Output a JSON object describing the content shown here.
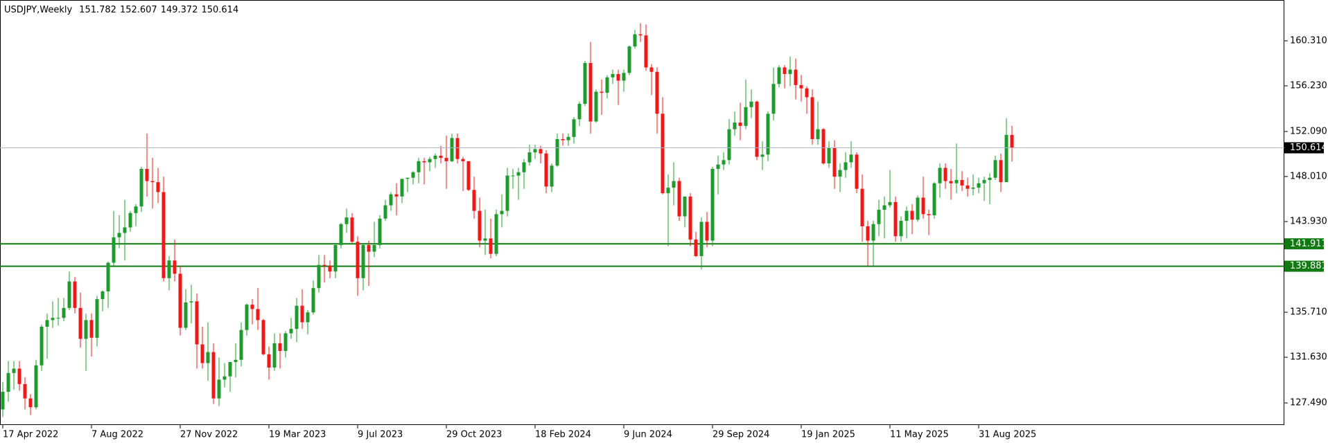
{
  "chart_data": {
    "type": "candlestick",
    "title": "USDJPY,Weekly",
    "categories": [
      "17 Apr 2022",
      null,
      null,
      null,
      null,
      null,
      null,
      null,
      null,
      null,
      null,
      null,
      null,
      null,
      null,
      null,
      "7 Aug 2022",
      null,
      null,
      null,
      null,
      null,
      null,
      null,
      null,
      null,
      null,
      null,
      null,
      null,
      null,
      null,
      "27 Nov 2022",
      null,
      null,
      null,
      null,
      null,
      null,
      null,
      null,
      null,
      null,
      null,
      null,
      null,
      null,
      null,
      "19 Mar 2023",
      null,
      null,
      null,
      null,
      null,
      null,
      null,
      null,
      null,
      null,
      null,
      null,
      null,
      null,
      null,
      "9 Jul 2023",
      null,
      null,
      null,
      null,
      null,
      null,
      null,
      null,
      null,
      null,
      null,
      null,
      null,
      null,
      null,
      "29 Oct 2023",
      null,
      null,
      null,
      null,
      null,
      null,
      null,
      null,
      null,
      null,
      null,
      null,
      null,
      null,
      null,
      "18 Feb 2024",
      null,
      null,
      null,
      null,
      null,
      null,
      null,
      null,
      null,
      null,
      null,
      null,
      null,
      null,
      null,
      "9 Jun 2024",
      null,
      null,
      null,
      null,
      null,
      null,
      null,
      null,
      null,
      null,
      null,
      null,
      null,
      null,
      null,
      "29 Sep 2024",
      null,
      null,
      null,
      null,
      null,
      null,
      null,
      null,
      null,
      null,
      null,
      null,
      null,
      null,
      null,
      "19 Jan 2025",
      null,
      null,
      null,
      null,
      null,
      null,
      null,
      null,
      null,
      null,
      null,
      null,
      null,
      null,
      null,
      "11 May 2025",
      null,
      null,
      null,
      null,
      null,
      null,
      null,
      null,
      null,
      null,
      null,
      null,
      null,
      null,
      null,
      "31 Aug 2025",
      null,
      null,
      null,
      null,
      null,
      null
    ],
    "opens": [
      126.9,
      128.5,
      130.2,
      130.6,
      129.2,
      127.9,
      127.1,
      130.9,
      134.4,
      135.0,
      135.2,
      135.2,
      136.1,
      138.5,
      136.1,
      133.3,
      135.0,
      133.4,
      136.9,
      137.6,
      140.2,
      142.5,
      142.9,
      143.4,
      144.7,
      145.3,
      148.7,
      147.6,
      147.5,
      146.6,
      138.8,
      140.4,
      139.2,
      134.3,
      136.6,
      136.7,
      132.8,
      131.1,
      132.1,
      127.9,
      129.6,
      129.9,
      131.2,
      131.4,
      134.1,
      136.4,
      136.0,
      135.0,
      131.9,
      130.7,
      132.9,
      132.2,
      133.8,
      134.2,
      136.3,
      134.8,
      135.7,
      137.9,
      140.0,
      139.9,
      139.4,
      141.8,
      143.7,
      144.3,
      142.1,
      138.8,
      141.8,
      141.2,
      141.8,
      144.2,
      145.4,
      146.4,
      146.2,
      147.8,
      147.9,
      148.4,
      149.4,
      149.3,
      149.6,
      149.9,
      149.7,
      149.4,
      151.5,
      149.6,
      149.4,
      146.8,
      144.9,
      142.2,
      142.4,
      141.0,
      144.6,
      144.9,
      148.1,
      148.1,
      148.4,
      149.3,
      150.2,
      150.5,
      150.1,
      147.1,
      149.0,
      151.4,
      151.3,
      151.6,
      153.2,
      154.6,
      158.3,
      153.0,
      155.7,
      155.6,
      157.0,
      157.3,
      156.7,
      157.4,
      159.8,
      160.9,
      160.8,
      157.9,
      157.5,
      153.7,
      146.5,
      147.0,
      147.6,
      144.4,
      146.2,
      142.3,
      140.8,
      143.9,
      142.2,
      148.7,
      149.1,
      149.5,
      152.3,
      152.9,
      152.6,
      154.3,
      154.8,
      149.8,
      150.0,
      153.7,
      156.4,
      157.9,
      157.3,
      157.7,
      156.3,
      156.0,
      155.2,
      151.4,
      152.3,
      149.2,
      150.6,
      148.0,
      148.6,
      149.3,
      150.0,
      146.9,
      143.5,
      142.2,
      143.7,
      145.0,
      145.4,
      145.7,
      142.6,
      144.0,
      144.9,
      144.1,
      146.1,
      144.6,
      144.5,
      147.4,
      148.8,
      147.6,
      147.4,
      147.7,
      147.2,
      146.9,
      147.0,
      147.4,
      147.7,
      147.9,
      149.5,
      147.5,
      151.782
    ],
    "highs": [
      129.4,
      131.3,
      131.3,
      131.3,
      129.8,
      128.3,
      131.4,
      134.6,
      135.6,
      136.7,
      137.0,
      137.0,
      139.4,
      138.9,
      137.5,
      135.6,
      135.6,
      137.2,
      137.7,
      140.3,
      144.9,
      144.5,
      145.9,
      144.9,
      145.5,
      148.9,
      151.9,
      149.7,
      148.8,
      148.0,
      140.8,
      142.3,
      139.9,
      137.8,
      138.2,
      137.4,
      134.4,
      134.8,
      132.9,
      131.6,
      131.1,
      131.2,
      132.9,
      134.8,
      136.5,
      136.9,
      137.9,
      135.1,
      132.6,
      133.8,
      133.8,
      134.0,
      135.2,
      137.0,
      137.8,
      135.9,
      138.6,
      140.9,
      140.9,
      140.4,
      141.9,
      143.8,
      145.1,
      144.7,
      142.6,
      142.0,
      142.2,
      143.9,
      144.5,
      145.9,
      146.6,
      147.4,
      147.8,
      147.9,
      148.5,
      149.7,
      149.7,
      149.8,
      150.1,
      150.8,
      151.7,
      151.9,
      151.9,
      149.8,
      149.4,
      148.0,
      146.1,
      145.0,
      144.2,
      145.0,
      146.4,
      148.8,
      148.7,
      148.8,
      149.6,
      150.9,
      150.9,
      150.8,
      150.4,
      149.2,
      151.9,
      151.9,
      151.9,
      153.4,
      154.8,
      158.5,
      160.2,
      155.9,
      156.8,
      157.2,
      157.7,
      157.7,
      157.7,
      159.9,
      161.3,
      161.9,
      161.8,
      158.2,
      157.9,
      155.2,
      148.2,
      149.3,
      147.9,
      146.2,
      146.5,
      143.0,
      144.3,
      144.8,
      148.9,
      149.9,
      150.2,
      153.2,
      153.9,
      154.7,
      156.8,
      155.9,
      154.9,
      151.2,
      153.9,
      157.9,
      158.1,
      158.1,
      158.9,
      158.7,
      157.2,
      156.2,
      155.9,
      154.8,
      152.4,
      151.2,
      151.3,
      149.2,
      150.2,
      151.2,
      150.2,
      148.2,
      144.0,
      144.0,
      145.9,
      146.2,
      148.6,
      146.2,
      144.4,
      145.3,
      145.5,
      146.3,
      148.0,
      145.0,
      147.5,
      149.2,
      149.2,
      148.7,
      151.0,
      148.5,
      147.9,
      148.2,
      147.9,
      148.0,
      148.3,
      149.9,
      150.1,
      153.3,
      152.607
    ],
    "lows": [
      126.2,
      127.6,
      128.7,
      128.6,
      126.9,
      126.4,
      126.9,
      130.4,
      131.5,
      134.3,
      134.5,
      134.9,
      135.9,
      135.6,
      132.5,
      130.4,
      131.7,
      132.6,
      135.8,
      136.1,
      139.8,
      141.5,
      140.4,
      143.0,
      143.5,
      144.8,
      146.2,
      145.1,
      145.6,
      138.5,
      137.7,
      138.5,
      133.6,
      134.1,
      134.7,
      130.6,
      130.6,
      129.5,
      127.4,
      127.2,
      128.9,
      128.5,
      129.8,
      130.8,
      133.6,
      134.6,
      134.1,
      131.8,
      129.6,
      130.4,
      130.6,
      131.6,
      133.3,
      133.0,
      134.2,
      133.7,
      135.5,
      137.5,
      138.4,
      138.8,
      138.8,
      141.5,
      142.9,
      142.0,
      137.2,
      137.7,
      138.1,
      140.7,
      141.5,
      144.0,
      144.9,
      144.5,
      145.6,
      146.6,
      147.3,
      147.4,
      147.3,
      148.5,
      148.8,
      149.2,
      146.9,
      149.3,
      149.2,
      146.7,
      146.7,
      144.2,
      141.6,
      140.9,
      140.6,
      140.8,
      143.4,
      144.4,
      146.9,
      145.9,
      146.9,
      149.0,
      149.6,
      149.2,
      146.5,
      146.6,
      148.9,
      150.8,
      150.8,
      151.0,
      152.6,
      154.4,
      151.9,
      152.9,
      153.6,
      155.1,
      156.4,
      154.5,
      155.7,
      157.2,
      159.6,
      160.2,
      157.6,
      155.4,
      151.9,
      146.4,
      141.7,
      145.4,
      144.0,
      143.4,
      141.7,
      140.7,
      139.6,
      141.6,
      141.7,
      146.4,
      148.6,
      149.1,
      151.7,
      151.3,
      152.3,
      153.3,
      149.5,
      148.6,
      149.4,
      153.1,
      156.1,
      156.0,
      156.2,
      155.0,
      154.8,
      153.7,
      150.9,
      150.9,
      149.1,
      148.8,
      146.9,
      146.6,
      147.9,
      148.8,
      146.5,
      142.1,
      139.9,
      139.9,
      142.6,
      142.4,
      145.2,
      142.1,
      142.1,
      142.4,
      142.8,
      143.9,
      144.2,
      142.7,
      144.2,
      146.1,
      146.9,
      145.9,
      146.5,
      146.7,
      146.2,
      146.3,
      146.5,
      145.8,
      145.5,
      147.7,
      146.6,
      149.4,
      149.372
    ],
    "closes": [
      128.5,
      130.2,
      130.6,
      129.2,
      127.9,
      127.1,
      130.9,
      134.4,
      135.0,
      135.2,
      135.2,
      136.1,
      138.5,
      136.1,
      133.3,
      135.0,
      133.4,
      136.9,
      137.6,
      140.2,
      142.5,
      142.9,
      143.4,
      144.7,
      145.3,
      148.7,
      147.6,
      147.5,
      146.6,
      138.8,
      140.4,
      139.2,
      134.3,
      136.6,
      136.7,
      132.8,
      131.1,
      132.1,
      127.9,
      129.6,
      129.9,
      131.2,
      131.4,
      134.1,
      136.4,
      136.0,
      135.0,
      131.9,
      130.7,
      132.9,
      132.2,
      133.8,
      134.2,
      136.3,
      134.8,
      135.7,
      137.9,
      140.0,
      139.9,
      139.4,
      141.8,
      143.7,
      144.3,
      142.1,
      138.8,
      141.8,
      141.2,
      141.8,
      144.2,
      145.4,
      146.4,
      146.2,
      147.8,
      147.9,
      148.4,
      149.4,
      149.3,
      149.6,
      149.9,
      149.7,
      149.4,
      151.5,
      149.6,
      149.4,
      146.8,
      144.9,
      142.2,
      142.4,
      141.0,
      144.6,
      144.9,
      148.1,
      148.1,
      148.4,
      149.3,
      150.2,
      150.5,
      150.1,
      147.1,
      149.0,
      151.4,
      151.3,
      151.6,
      153.2,
      154.6,
      158.3,
      153.0,
      155.7,
      155.6,
      157.0,
      157.3,
      156.7,
      157.4,
      159.8,
      160.9,
      160.8,
      157.9,
      157.5,
      153.7,
      146.5,
      147.0,
      147.6,
      144.4,
      146.2,
      142.3,
      140.8,
      143.9,
      142.2,
      148.7,
      149.1,
      149.5,
      152.3,
      152.9,
      152.6,
      154.3,
      154.8,
      149.8,
      150.0,
      153.7,
      156.4,
      157.9,
      157.3,
      157.7,
      156.3,
      156.0,
      155.2,
      151.4,
      152.3,
      149.2,
      150.6,
      148.0,
      148.6,
      149.3,
      150.0,
      146.9,
      143.5,
      142.2,
      143.7,
      145.0,
      145.4,
      145.7,
      142.6,
      144.0,
      144.9,
      144.1,
      146.1,
      144.6,
      144.5,
      147.4,
      148.8,
      147.6,
      147.4,
      147.7,
      147.2,
      146.9,
      147.0,
      147.4,
      147.7,
      147.9,
      149.5,
      147.5,
      151.782,
      150.614
    ],
    "up_color": "#1f9a2e",
    "down_color": "#f01818",
    "ylim": [
      125.49,
      164.01
    ],
    "yticks": [
      {
        "value": 127.49,
        "label": "127.490"
      },
      {
        "value": 131.63,
        "label": "131.630"
      },
      {
        "value": 135.71,
        "label": "135.710"
      },
      {
        "value": 143.93,
        "label": "143.930"
      },
      {
        "value": 148.01,
        "label": "148.010"
      },
      {
        "value": 152.09,
        "label": "152.090"
      },
      {
        "value": 156.23,
        "label": "156.230"
      },
      {
        "value": 160.31,
        "label": "160.310"
      }
    ],
    "levels": [
      {
        "value": 141.911,
        "color": "#0f7a0f"
      },
      {
        "value": 139.881,
        "color": "#0f7a0f"
      }
    ],
    "price_line_color": "#a9b7c9"
  }
}
